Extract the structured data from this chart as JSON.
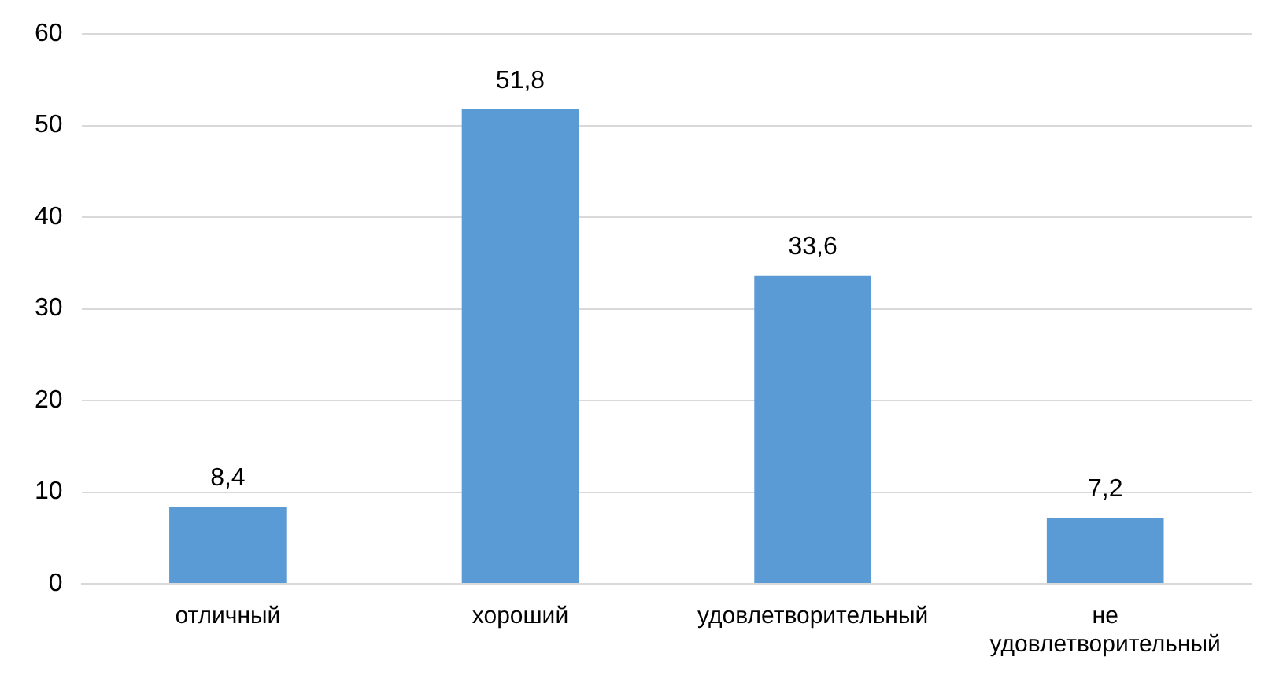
{
  "chart_data": {
    "type": "bar",
    "categories": [
      "отличный",
      "хороший",
      "удовлетворительный",
      "не удовлетворительный"
    ],
    "values": [
      8.4,
      51.8,
      33.6,
      7.2
    ],
    "value_labels": [
      "8,4",
      "51,8",
      "33,6",
      "7,2"
    ],
    "color": "#5b9bd5",
    "ylim": [
      0,
      60
    ],
    "yticks": [
      0,
      10,
      20,
      30,
      40,
      50,
      60
    ],
    "grid": "y",
    "legend": false
  }
}
